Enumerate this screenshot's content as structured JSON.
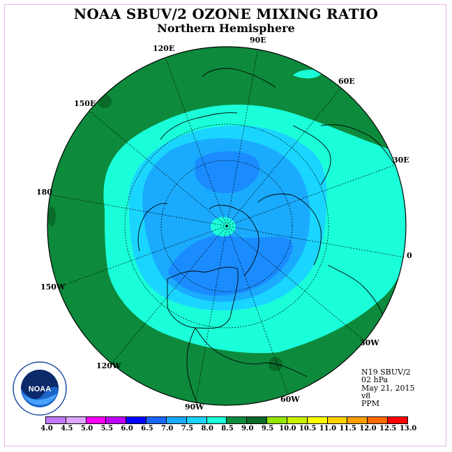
{
  "header": {
    "title": "NOAA SBUV/2 OZONE MIXING RATIO",
    "subtitle": "Northern Hemisphere"
  },
  "map": {
    "projection": "north polar stereographic",
    "longitude_labels": [
      "90E",
      "60E",
      "30E",
      "0",
      "30W",
      "60W",
      "90W",
      "120W",
      "150W",
      "180",
      "150E",
      "120E"
    ],
    "contour_colors": {
      "ocean_outer": "#0d8a3c",
      "band_8_0": "#1affd9",
      "band_7_5": "#1ad5ff",
      "band_7_0": "#1aabff",
      "band_6_5": "#1a8cff",
      "band_6_0": "#1a66ff",
      "band_8_5": "#0a6a2a"
    },
    "grid": true
  },
  "info": {
    "satellite": "N19 SBUV/2",
    "level": "02 hPa",
    "date": "May 21, 2015",
    "version": "v8",
    "units": "PPM"
  },
  "colorbar": {
    "tick_labels": [
      "4.0",
      "4.5",
      "5.0",
      "5.5",
      "6.0",
      "6.5",
      "7.0",
      "7.5",
      "8.0",
      "8.5",
      "9.0",
      "9.5",
      "10.0",
      "10.5",
      "11.0",
      "11.5",
      "12.0",
      "12.5",
      "13.0"
    ],
    "colors": [
      "#c07bff",
      "#dda8ff",
      "#ff00ff",
      "#c000ff",
      "#0000ff",
      "#1a66ff",
      "#1aabff",
      "#1ad5ff",
      "#1affd9",
      "#0d8a3c",
      "#0a6a2a",
      "#94e600",
      "#c8f000",
      "#ffff00",
      "#ffd000",
      "#ffa000",
      "#ff6a00",
      "#ff0000",
      "#8c5a3c"
    ]
  },
  "logo": {
    "text": "NOAA",
    "ring_text": "NATIONAL OCEANIC AND ATMOSPHERIC ADMINISTRATION · U.S. DEPARTMENT OF COMMERCE"
  }
}
